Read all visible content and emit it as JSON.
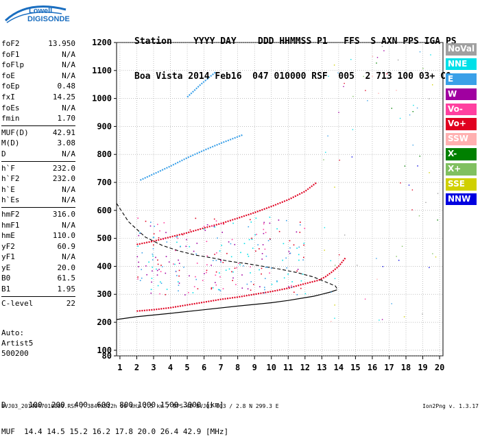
{
  "logo": {
    "line1": "Lowell",
    "line2": "DIGISONDE"
  },
  "header": {
    "row1": "Station    YYYY DAY    DDD HHMMSS P1   FFS  S AXN PPS IGA PS",
    "row2": "Boa Vista 2014 Feb16  047 010000 RSF  005  2 713 100 03+ C0"
  },
  "params": [
    [
      [
        "foF2",
        "13.950"
      ],
      [
        "foF1",
        "N/A"
      ],
      [
        "foFlp",
        "N/A"
      ],
      [
        "foE",
        "N/A"
      ],
      [
        "foEp",
        "0.48"
      ],
      [
        "fxI",
        "14.25"
      ],
      [
        "foEs",
        "N/A"
      ],
      [
        "fmin",
        "1.70"
      ]
    ],
    [
      [
        "MUF(D)",
        "42.91"
      ],
      [
        "M(D)",
        "3.08"
      ],
      [
        "D",
        "N/A"
      ]
    ],
    [
      [
        "h`F",
        "232.0"
      ],
      [
        "h`F2",
        "232.0"
      ],
      [
        "h`E",
        "N/A"
      ],
      [
        "h`Es",
        "N/A"
      ]
    ],
    [
      [
        "hmF2",
        "316.0"
      ],
      [
        "hmF1",
        "N/A"
      ],
      [
        "hmE",
        "110.0"
      ],
      [
        "yF2",
        "60.9"
      ],
      [
        "yF1",
        "N/A"
      ],
      [
        "yE",
        "20.0"
      ],
      [
        "B0",
        "61.5"
      ],
      [
        "B1",
        "1.95"
      ]
    ],
    [
      [
        "C-level",
        "22"
      ]
    ]
  ],
  "auto": {
    "line1": "Auto:",
    "line2": "Artist5",
    "line3": "500200"
  },
  "muf": {
    "row1": "D     100  200  400  600  800 1000 1500 3000 [km]",
    "row2": "MUF  14.4 14.5 15.2 16.2 17.8 20.0 26.4 42.9 [MHz]"
  },
  "footer": {
    "left": "BVJ03_2014047010000.RSF / 384fx512h 50 kHz 2.5 km / DPS-4D BVJ03 003 / 2.8 N 299.3 E",
    "right": "Ion2Png v. 1.3.17"
  },
  "legend": [
    {
      "label": "NoVal",
      "color": "#a0a0a0"
    },
    {
      "label": "NNE",
      "color": "#00e0e8"
    },
    {
      "label": "E",
      "color": "#3aa0e8"
    },
    {
      "label": "W",
      "color": "#a000a0"
    },
    {
      "label": "Vo-",
      "color": "#ff40a0"
    },
    {
      "label": "Vo+",
      "color": "#e00020"
    },
    {
      "label": "SSW",
      "color": "#ffb0b0"
    },
    {
      "label": "X-",
      "color": "#008000"
    },
    {
      "label": "X+",
      "color": "#80c060"
    },
    {
      "label": "SSE",
      "color": "#d0d000"
    },
    {
      "label": "NNW",
      "color": "#0000e0"
    }
  ],
  "chart_data": {
    "type": "scatter",
    "xlabel": "",
    "ylabel": "",
    "xlim": [
      0.8,
      20.2
    ],
    "ylim": [
      80,
      1200
    ],
    "x_ticks": [
      "1",
      "2",
      "3",
      "4",
      "5",
      "6",
      "7",
      "8",
      "9",
      "10",
      "11",
      "12",
      "13",
      "14",
      "15",
      "16",
      "17",
      "18",
      "19",
      "20"
    ],
    "y_ticks": [
      "80",
      "100",
      "200",
      "300",
      "400",
      "500",
      "600",
      "700",
      "800",
      "900",
      "1000",
      "1100",
      "1200"
    ],
    "grid": true,
    "traces": [
      {
        "name": "o-trace F2",
        "color": "#e00020",
        "x": [
          2.0,
          3,
          4,
          5,
          6,
          7,
          8,
          9,
          10,
          11,
          12,
          12.8,
          13.2,
          13.6,
          14.0,
          14.4
        ],
        "y": [
          240,
          245,
          252,
          262,
          272,
          282,
          290,
          300,
          310,
          322,
          338,
          350,
          362,
          380,
          400,
          430
        ]
      },
      {
        "name": "o-trace 2F2",
        "color": "#e00020",
        "x": [
          2.0,
          3,
          4,
          5,
          6,
          7,
          8,
          9,
          10,
          11,
          12,
          12.7
        ],
        "y": [
          478,
          490,
          505,
          520,
          537,
          553,
          572,
          592,
          614,
          638,
          668,
          700
        ]
      },
      {
        "name": "3F2",
        "color": "#3aa0e8",
        "x": [
          2.2,
          3,
          4,
          5,
          6,
          7,
          8.3
        ],
        "y": [
          708,
          730,
          758,
          788,
          815,
          840,
          870
        ]
      },
      {
        "name": "4F2",
        "color": "#3aa0e8",
        "x": [
          5.0,
          5.8,
          6.7
        ],
        "y": [
          1005,
          1050,
          1095
        ]
      }
    ],
    "profile": {
      "x": [
        0.8,
        2,
        4,
        6,
        8,
        10,
        11,
        12,
        12.5,
        13,
        13.5,
        13.9
      ],
      "y": [
        210,
        220,
        232,
        245,
        258,
        270,
        278,
        288,
        293,
        300,
        308,
        316
      ]
    },
    "profile_dashed": {
      "x": [
        0.8,
        1.5,
        2.5,
        3.5,
        4.5,
        5.5,
        6.5,
        7.5,
        8.5,
        9.5,
        10.5,
        11.5,
        12.5,
        13.2,
        13.8,
        13.95
      ],
      "y": [
        625,
        560,
        505,
        475,
        455,
        440,
        430,
        418,
        410,
        400,
        390,
        378,
        362,
        345,
        330,
        316
      ]
    }
  }
}
